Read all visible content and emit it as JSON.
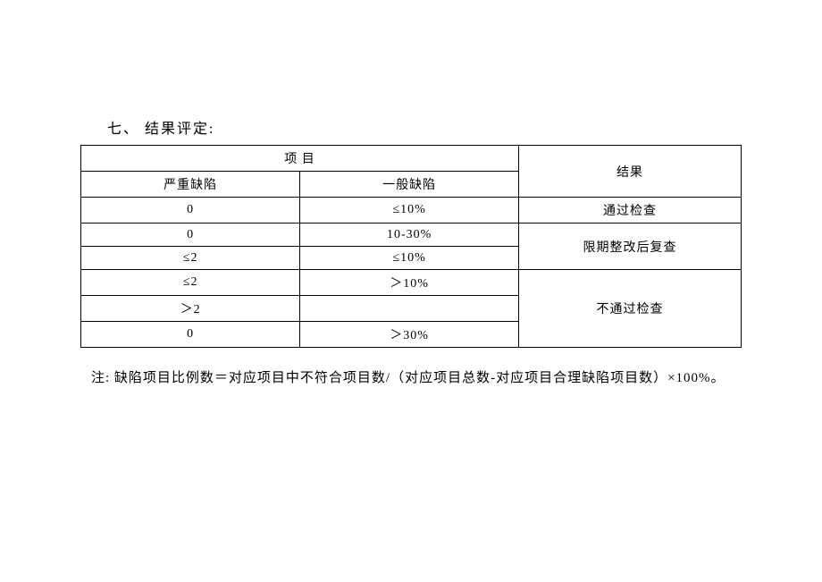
{
  "title": "七、 结果评定:",
  "headers": {
    "project": "项  目",
    "severe": "严重缺陷",
    "general": "一般缺陷",
    "result": "结果"
  },
  "rows": {
    "r1": {
      "severe": "0",
      "general": "≤10%",
      "result": "通过检查"
    },
    "r2": {
      "severe": "0",
      "general": "10-30%"
    },
    "r3": {
      "severe": "≤2",
      "general": "≤10%",
      "result23": "限期整改后复查"
    },
    "r4": {
      "severe": "≤2",
      "general": "＞10%"
    },
    "r5": {
      "severe": "＞2",
      "general": ""
    },
    "r6": {
      "severe": "0",
      "general": "＞30%",
      "result456": "不通过检查"
    }
  },
  "footnote": "注: 缺陷项目比例数＝对应项目中不符合项目数/（对应项目总数-对应项目合理缺陷项目数）×100%。",
  "colors": {
    "border": "#000000",
    "background": "#ffffff",
    "text": "#000000"
  },
  "font": {
    "family": "SimSun",
    "title_size_pt": 12,
    "cell_size_pt": 10,
    "footnote_size_pt": 11
  }
}
